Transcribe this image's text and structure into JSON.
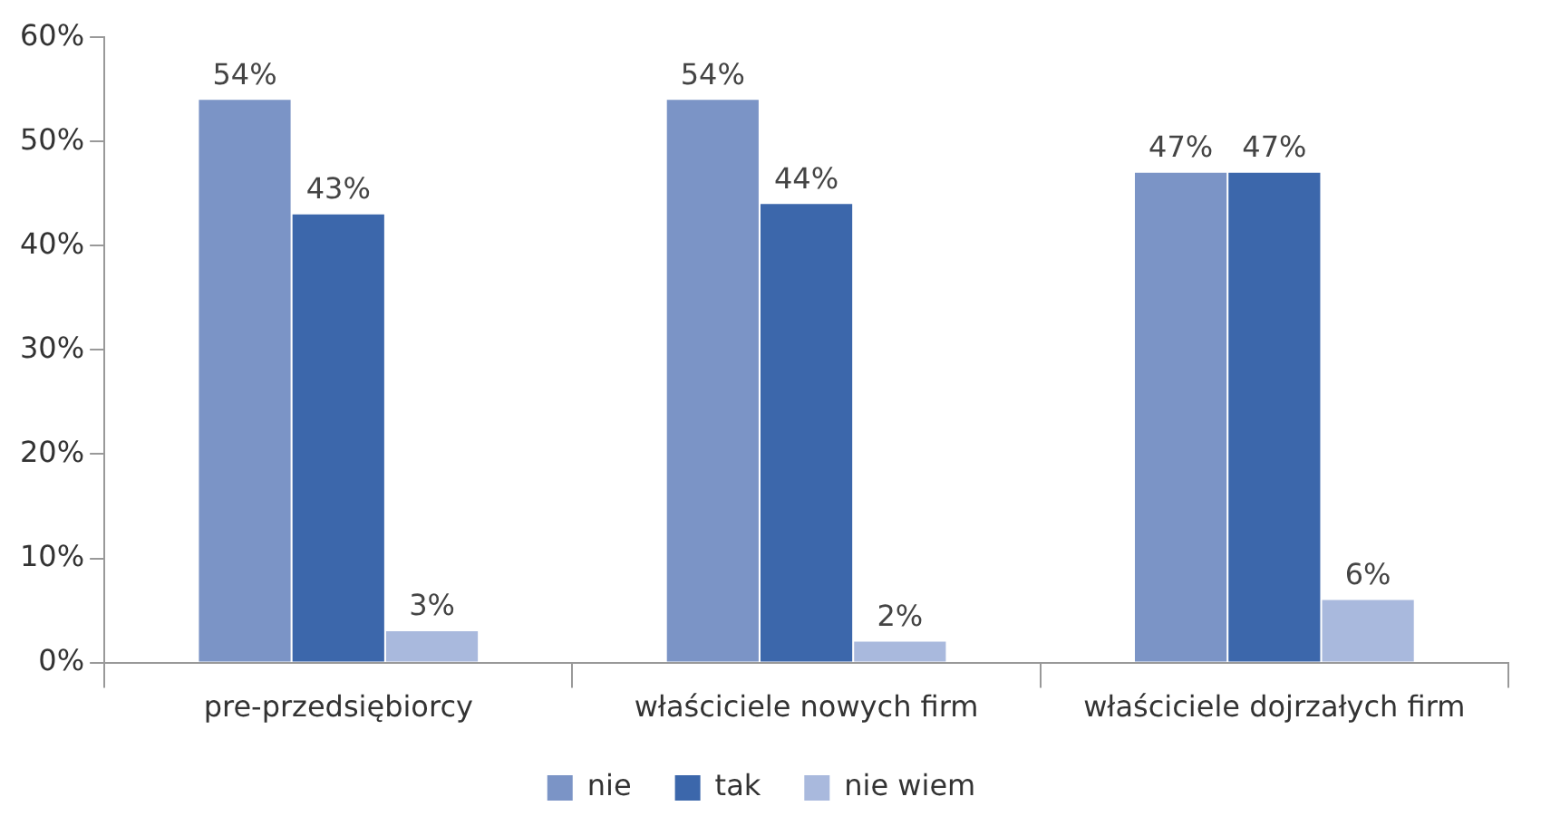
{
  "chart_data": {
    "type": "bar",
    "categories": [
      "pre-przedsiębiorcy",
      "właściciele nowych firm",
      "właściciele dojrzałych firm"
    ],
    "series": [
      {
        "name": "nie",
        "color": "#7b94c6",
        "values": [
          54,
          54,
          47
        ],
        "value_labels": [
          "54%",
          "54%",
          "47%"
        ]
      },
      {
        "name": "tak",
        "color": "#3c67ab",
        "values": [
          43,
          44,
          47
        ],
        "value_labels": [
          "43%",
          "44%",
          "47%"
        ]
      },
      {
        "name": "nie wiem",
        "color": "#a9b9dd",
        "values": [
          3,
          2,
          6
        ],
        "value_labels": [
          "3%",
          "2%",
          "6%"
        ]
      }
    ],
    "ylim": [
      0,
      60
    ],
    "yticks": [
      {
        "value": 0,
        "label": "0%"
      },
      {
        "value": 10,
        "label": "10%"
      },
      {
        "value": 20,
        "label": "20%"
      },
      {
        "value": 30,
        "label": "30%"
      },
      {
        "value": 40,
        "label": "40%"
      },
      {
        "value": 50,
        "label": "50%"
      },
      {
        "value": 60,
        "label": "60%"
      }
    ],
    "grid": false,
    "legend": "bottom"
  }
}
